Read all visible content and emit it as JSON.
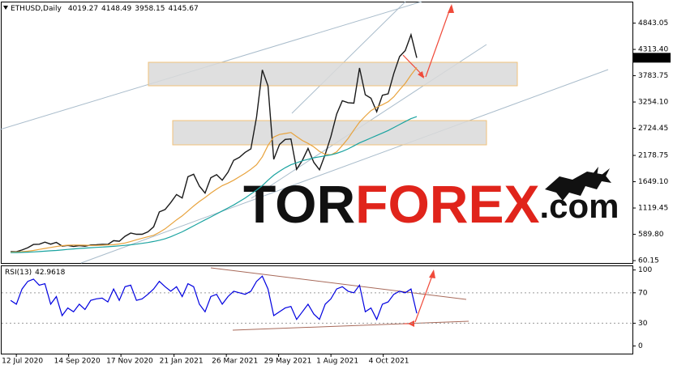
{
  "chart_data": [
    {
      "type": "line",
      "title": "ETHUSD,Daily",
      "last_bar": {
        "open": 4019.27,
        "high": 4148.49,
        "low": 3958.15,
        "close": 4145.67
      },
      "x": [
        "5 Jul 2020",
        "12 Jul 2020",
        "19 Jul 2020",
        "26 Jul 2020",
        "2 Aug 2020",
        "9 Aug 2020",
        "16 Aug 2020",
        "23 Aug 2020",
        "30 Aug 2020",
        "6 Sep 2020",
        "13 Sep 2020",
        "20 Sep 2020",
        "27 Sep 2020",
        "4 Oct 2020",
        "11 Oct 2020",
        "18 Oct 2020",
        "25 Oct 2020",
        "1 Nov 2020",
        "8 Nov 2020",
        "15 Nov 2020",
        "22 Nov 2020",
        "29 Nov 2020",
        "6 Dec 2020",
        "13 Dec 2020",
        "20 Dec 2020",
        "27 Dec 2020",
        "3 Jan 2021",
        "10 Jan 2021",
        "17 Jan 2021",
        "24 Jan 2021",
        "31 Jan 2021",
        "7 Feb 2021",
        "14 Feb 2021",
        "21 Feb 2021",
        "28 Feb 2021",
        "7 Mar 2021",
        "14 Mar 2021",
        "21 Mar 2021",
        "28 Mar 2021",
        "4 Apr 2021",
        "11 Apr 2021",
        "18 Apr 2021",
        "25 Apr 2021",
        "2 May 2021",
        "9 May 2021",
        "16 May 2021",
        "23 May 2021",
        "30 May 2021",
        "6 Jun 2021",
        "13 Jun 2021",
        "20 Jun 2021",
        "27 Jun 2021",
        "4 Jul 2021",
        "11 Jul 2021",
        "18 Jul 2021",
        "25 Jul 2021",
        "1 Aug 2021",
        "8 Aug 2021",
        "15 Aug 2021",
        "22 Aug 2021",
        "29 Aug 2021",
        "5 Sep 2021",
        "12 Sep 2021",
        "19 Sep 2021",
        "26 Sep 2021",
        "3 Oct 2021",
        "10 Oct 2021",
        "17 Oct 2021",
        "24 Oct 2021",
        "31 Oct 2021",
        "7 Nov 2021",
        "14 Nov 2021"
      ],
      "series": [
        {
          "color": "#1a1a1a",
          "values": [
            242,
            239,
            275,
            320,
            386,
            390,
            432,
            392,
            428,
            353,
            365,
            345,
            360,
            350,
            375,
            380,
            388,
            385,
            462,
            450,
            550,
            615,
            590,
            590,
            640,
            740,
            1040,
            1090,
            1230,
            1390,
            1320,
            1750,
            1800,
            1560,
            1420,
            1730,
            1790,
            1680,
            1840,
            2080,
            2140,
            2240,
            2310,
            2950,
            3900,
            3580,
            2100,
            2400,
            2500,
            2510,
            1900,
            2080,
            2320,
            2040,
            1890,
            2200,
            2560,
            3010,
            3280,
            3240,
            3230,
            3940,
            3400,
            3330,
            3060,
            3390,
            3420,
            3830,
            4170,
            4290,
            4610,
            4145.67
          ]
        },
        {
          "color": "#e8a33d",
          "values": [
            230,
            235,
            240,
            250,
            265,
            285,
            305,
            325,
            345,
            360,
            370,
            372,
            372,
            370,
            365,
            365,
            370,
            375,
            380,
            395,
            415,
            445,
            480,
            510,
            540,
            570,
            630,
            700,
            790,
            880,
            960,
            1060,
            1160,
            1250,
            1330,
            1420,
            1500,
            1570,
            1620,
            1680,
            1750,
            1820,
            1900,
            1990,
            2150,
            2380,
            2550,
            2600,
            2620,
            2640,
            2560,
            2480,
            2420,
            2350,
            2260,
            2200,
            2190,
            2250,
            2380,
            2520,
            2690,
            2850,
            2970,
            3080,
            3150,
            3200,
            3260,
            3360,
            3500,
            3630,
            3800,
            3950
          ]
        },
        {
          "color": "#1aa3a0",
          "values": [
            220,
            222,
            225,
            230,
            235,
            242,
            250,
            258,
            265,
            275,
            285,
            295,
            305,
            312,
            320,
            327,
            333,
            340,
            348,
            357,
            367,
            378,
            392,
            408,
            425,
            445,
            470,
            500,
            540,
            590,
            640,
            700,
            760,
            820,
            880,
            940,
            1000,
            1060,
            1120,
            1180,
            1250,
            1320,
            1400,
            1480,
            1570,
            1680,
            1780,
            1860,
            1930,
            1990,
            2030,
            2070,
            2100,
            2130,
            2150,
            2170,
            2190,
            2220,
            2260,
            2310,
            2370,
            2430,
            2480,
            2530,
            2580,
            2630,
            2680,
            2740,
            2800,
            2860,
            2920,
            2960
          ]
        }
      ],
      "xlim": [
        "22 Jun 2020",
        "5 Aug 2022"
      ],
      "xticks": [
        "12 Jul 2020",
        "14 Sep 2020",
        "17 Nov 2020",
        "21 Jan 2021",
        "26 Mar 2021",
        "29 May 2021",
        "1 Aug 2021",
        "4 Oct 2021"
      ],
      "ylim": [
        12,
        5276
      ],
      "yticks": [
        4843.05,
        {
          "value": 4313.4,
          "label": "4313.40"
        },
        3783.75,
        {
          "value": 3254.1,
          "label": "3254.10"
        },
        2724.45,
        2178.75,
        {
          "value": 1649.1,
          "label": "1649.10"
        },
        1119.45,
        {
          "value": 589.8,
          "label": "589.80"
        },
        60.15
      ]
    },
    {
      "type": "line",
      "title": "RSI(13)",
      "series": [
        {
          "color": "#0000e0",
          "values": [
            60,
            55,
            75,
            85,
            88,
            80,
            82,
            55,
            65,
            40,
            50,
            45,
            55,
            48,
            60,
            62,
            63,
            58,
            75,
            60,
            78,
            80,
            60,
            62,
            68,
            75,
            85,
            78,
            72,
            78,
            65,
            82,
            78,
            55,
            45,
            65,
            68,
            55,
            65,
            72,
            70,
            68,
            72,
            85,
            92,
            75,
            40,
            45,
            50,
            52,
            35,
            45,
            55,
            42,
            35,
            55,
            62,
            75,
            78,
            72,
            70,
            80,
            45,
            50,
            35,
            55,
            58,
            68,
            72,
            70,
            75,
            42.9618
          ]
        }
      ],
      "ylim": [
        -10,
        106
      ],
      "yticks": [
        100,
        70,
        30,
        0
      ],
      "grid_ticks": [
        70,
        30
      ]
    }
  ],
  "logo": {
    "part1": "TOR",
    "part2": "FOREX",
    "part3": ".com"
  }
}
